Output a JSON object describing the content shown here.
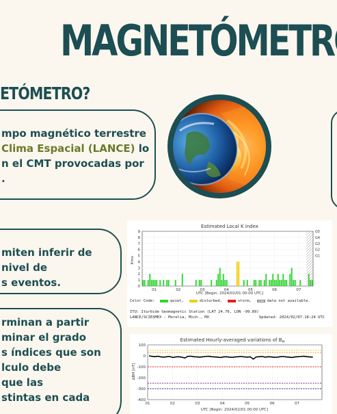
{
  "title": "MAGNETÓMETRO",
  "subtitle": "ETÓMETRO?",
  "card1": {
    "line1": "mpo magnético terrestre",
    "line2_accent": "Clima Espacial (LANCE)",
    "line2_rest": " lo",
    "line3": "n el CMT provocadas por",
    "line4": "."
  },
  "card2": {
    "line1": "miten inferir de",
    "line2": "nivel de",
    "line3": "s eventos."
  },
  "card3": {
    "line1": "rminan a partir",
    "line2": "minar el grado",
    "line3": "s índices que son",
    "line4": "lculo debe",
    "line5": "que las",
    "line6": "stintas en cada"
  },
  "colors": {
    "primary": "#1c4e53",
    "accent": "#6b7a2a",
    "background": "#fbf7ee",
    "quiet": "#2fd52f",
    "disturbed": "#f2cc10",
    "storm": "#e81c1c"
  },
  "globe_image": "earth-with-solar-wind-illustration",
  "kindex": {
    "title": "Estimated Local K index",
    "ylabel": "Kmx",
    "xlabel": "UTC [Begin: 2024/02/01 00:00 UTC]",
    "color_code_label": "Color Code:",
    "legend": [
      {
        "label": "quiet,",
        "color": "#2fd52f"
      },
      {
        "label": "disturbed,",
        "color": "#f2cc10"
      },
      {
        "label": "storm,",
        "color": "#e81c1c"
      },
      {
        "label": "data not available.",
        "color": "#888888"
      }
    ],
    "station": "ITU: Iturbide Geomagnetic Station (LAT   24.76, LON  -99.89)",
    "institution": "LANCE/SCIESMEX - Morelia, Mich., MX",
    "updated": "Updated: 2024/02/07-18:24 UTC"
  },
  "hourly": {
    "title": "Estimated Hourly-averaged variations of B",
    "title_sub": "H",
    "ylabel": "ΔB",
    "xlabel": "UTC [Begin: 2024/02/01 00:00 UTC]"
  },
  "chart_data": [
    {
      "type": "bar",
      "title": "Estimated Local K index",
      "ylabel": "Kmx",
      "xlabel": "UTC [Begin: 2024/02/01 00:00 UTC]",
      "ylim": [
        0,
        9
      ],
      "yticks": [
        "0",
        "1",
        "2",
        "3",
        "4",
        "5",
        "6",
        "7",
        "8",
        "9"
      ],
      "right_ticks": [
        "G1",
        "G2",
        "G3",
        "G4",
        "G5"
      ],
      "x_ticks": [
        "01",
        "02",
        "03",
        "04",
        "05",
        "06",
        "07"
      ],
      "values": [
        1,
        1,
        0,
        1,
        2,
        1,
        1,
        1,
        1,
        0,
        1,
        0,
        1,
        0,
        1,
        1,
        0,
        0,
        0,
        1,
        0,
        0,
        0,
        2,
        0,
        0,
        0,
        0,
        0,
        0,
        0,
        1,
        0,
        1,
        1,
        0,
        0,
        0,
        0,
        0,
        1,
        0,
        0,
        1,
        2,
        3,
        1,
        2,
        1,
        1,
        0,
        0,
        0,
        0,
        0,
        4,
        4,
        0,
        0,
        1,
        0,
        1,
        0,
        0,
        0,
        1,
        1,
        0,
        1,
        1,
        0,
        1,
        2,
        0,
        1,
        1,
        2,
        1,
        1,
        2,
        1,
        1,
        2,
        1,
        1,
        0,
        2,
        3,
        1,
        1,
        0,
        0,
        1,
        0,
        0,
        0,
        0,
        2,
        1,
        1
      ],
      "levels": [
        "quiet",
        "disturbed",
        "storm"
      ],
      "disturbed_threshold": 4,
      "unavailable_from_index": 104
    },
    {
      "type": "line",
      "title": "Estimated Hourly-averaged variations of BH",
      "ylabel": "ΔBH [nT]",
      "xlabel": "UTC [Begin: 2024/02/01 00:00 UTC]",
      "ylim": [
        -400,
        100
      ],
      "yticks": [
        "100",
        "0",
        "-100",
        "-200",
        "-300",
        "-400"
      ],
      "x_ticks": [
        "01",
        "02",
        "03",
        "04",
        "05",
        "06",
        "07"
      ],
      "reference_lines": [
        {
          "value": 50,
          "color": "#f2cc10"
        },
        {
          "value": 30,
          "color": "#e8a010"
        },
        {
          "value": -100,
          "color": "#e81c1c"
        },
        {
          "value": -250,
          "color": "#7a1c8a"
        },
        {
          "value": -300,
          "color": "#3a1c8a"
        }
      ],
      "values": [
        0,
        -5,
        -8,
        -4,
        -10,
        -12,
        -8,
        -6,
        -15,
        -10,
        -8,
        -12,
        -20,
        -5,
        -3,
        -8,
        -10,
        -12,
        -9,
        -6,
        -4,
        -8,
        -10,
        -12,
        -15,
        -10,
        -8,
        -12,
        -14,
        -10,
        -8,
        -6,
        -10,
        -12,
        -9,
        -30,
        -10,
        -8,
        -6,
        -12,
        -8,
        -10,
        -14,
        -12,
        -8,
        -6,
        -10,
        -12,
        -15,
        -10,
        -8,
        -6,
        -4,
        -8,
        -10,
        -12
      ]
    }
  ]
}
